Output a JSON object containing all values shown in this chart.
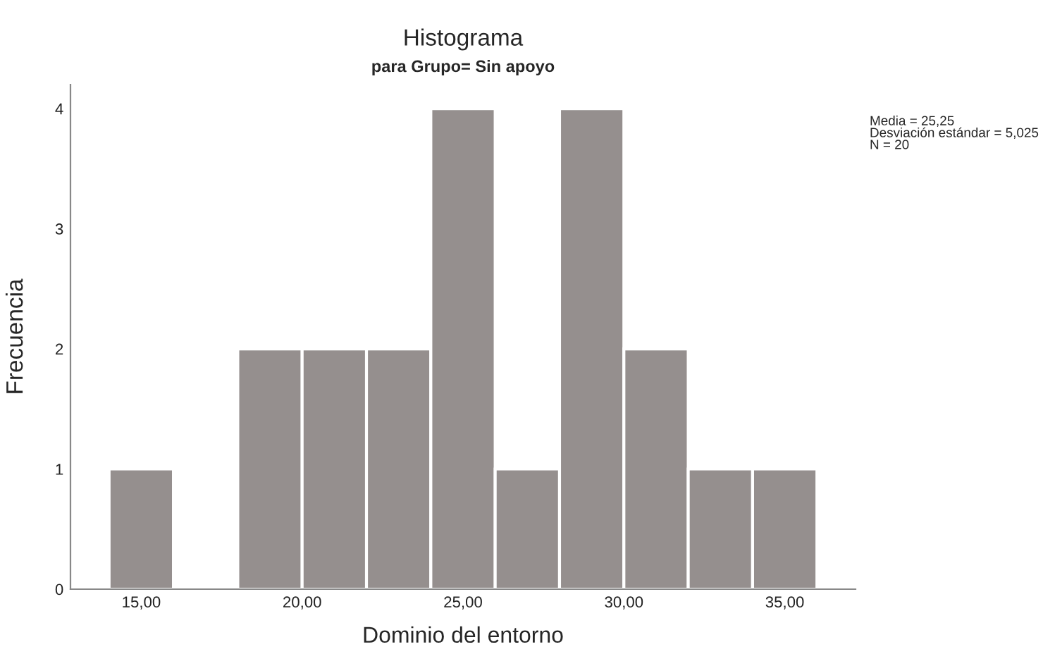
{
  "chart_data": {
    "type": "histogram",
    "title": "Histograma",
    "subtitle": "para Grupo= Sin apoyo",
    "xlabel": "Dominio del entorno",
    "ylabel": "Frecuencia",
    "bins": [
      14,
      16,
      18,
      20,
      22,
      24,
      26,
      28,
      30,
      32,
      34,
      36
    ],
    "values": [
      1,
      0,
      2,
      2,
      2,
      4,
      1,
      4,
      2,
      1,
      1
    ],
    "color": "#958f8e",
    "xlim": [
      12.8,
      37.2
    ],
    "xticks": [
      {
        "value": 15,
        "label": "15,00"
      },
      {
        "value": 20,
        "label": "20,00"
      },
      {
        "value": 25,
        "label": "25,00"
      },
      {
        "value": 30,
        "label": "30,00"
      },
      {
        "value": 35,
        "label": "35,00"
      }
    ],
    "ylim": [
      0,
      4.2
    ],
    "yticks": [
      0,
      1,
      2,
      3,
      4
    ],
    "grid": false,
    "legend": false,
    "annotations": [
      "Media = 25,25\nDesviación estándar = 5,025\nN = 20"
    ]
  }
}
